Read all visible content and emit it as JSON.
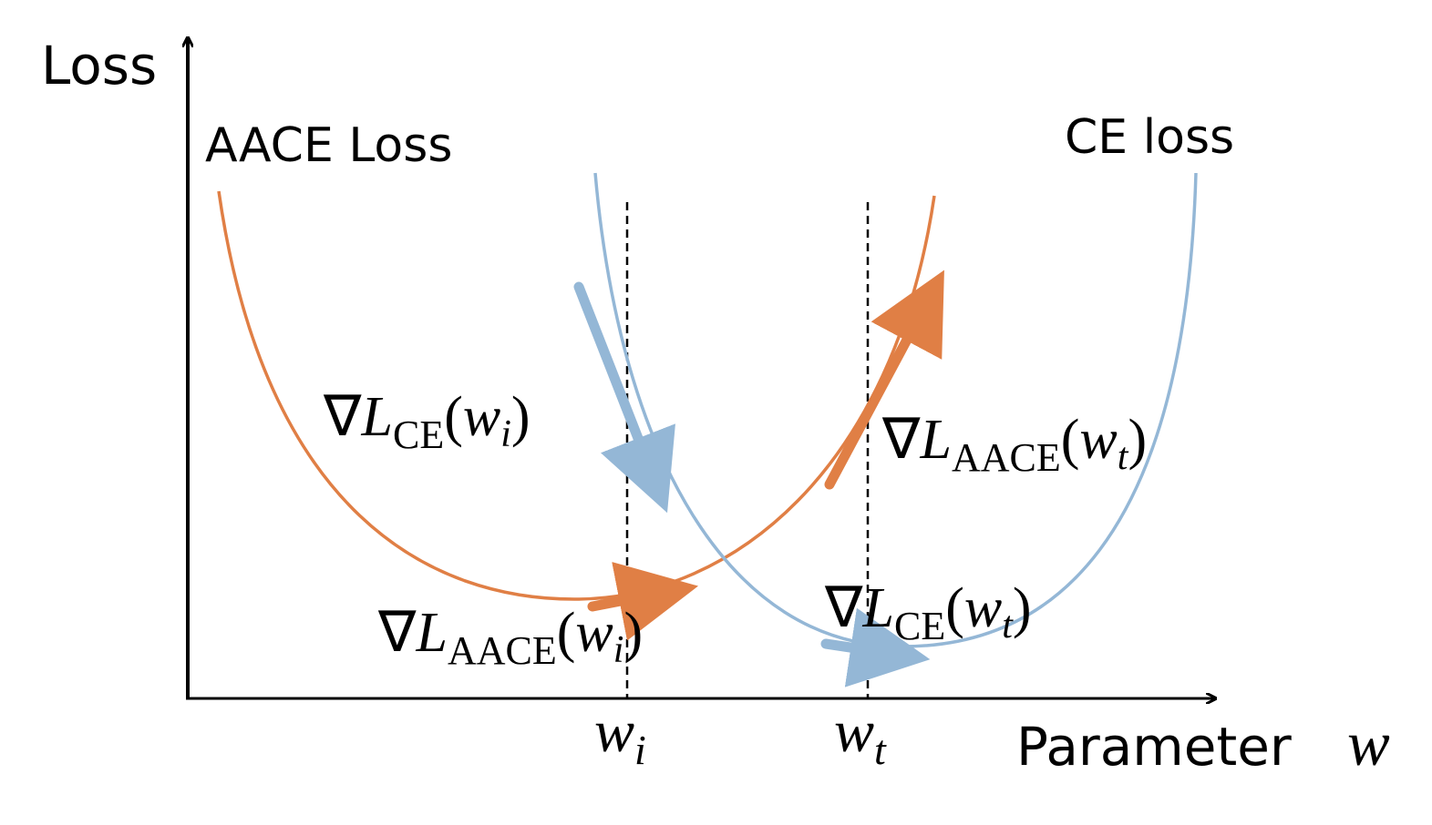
{
  "axes": {
    "y_label": "Loss",
    "x_label": "Parameter",
    "x_symbol": "w"
  },
  "curves": {
    "aace": "AACE Loss",
    "ce": "CE loss"
  },
  "markers": [
    {
      "variable": "w",
      "subscript": "i"
    },
    {
      "variable": "w",
      "subscript": "t"
    }
  ],
  "gradient_labels": [
    {
      "nabla": "∇",
      "symbol": "L",
      "subscript": "CE",
      "open": "(",
      "variable": "w",
      "variable_subscript": "i",
      "close": ")"
    },
    {
      "nabla": "∇",
      "symbol": "L",
      "subscript": "AACE",
      "open": "(",
      "variable": "w",
      "variable_subscript": "t",
      "close": ")"
    },
    {
      "nabla": "∇",
      "symbol": "L",
      "subscript": "AACE",
      "open": "(",
      "variable": "w",
      "variable_subscript": "i",
      "close": ")"
    },
    {
      "nabla": "∇",
      "symbol": "L",
      "subscript": "CE",
      "open": "(",
      "variable": "w",
      "variable_subscript": "t",
      "close": ")"
    }
  ]
}
